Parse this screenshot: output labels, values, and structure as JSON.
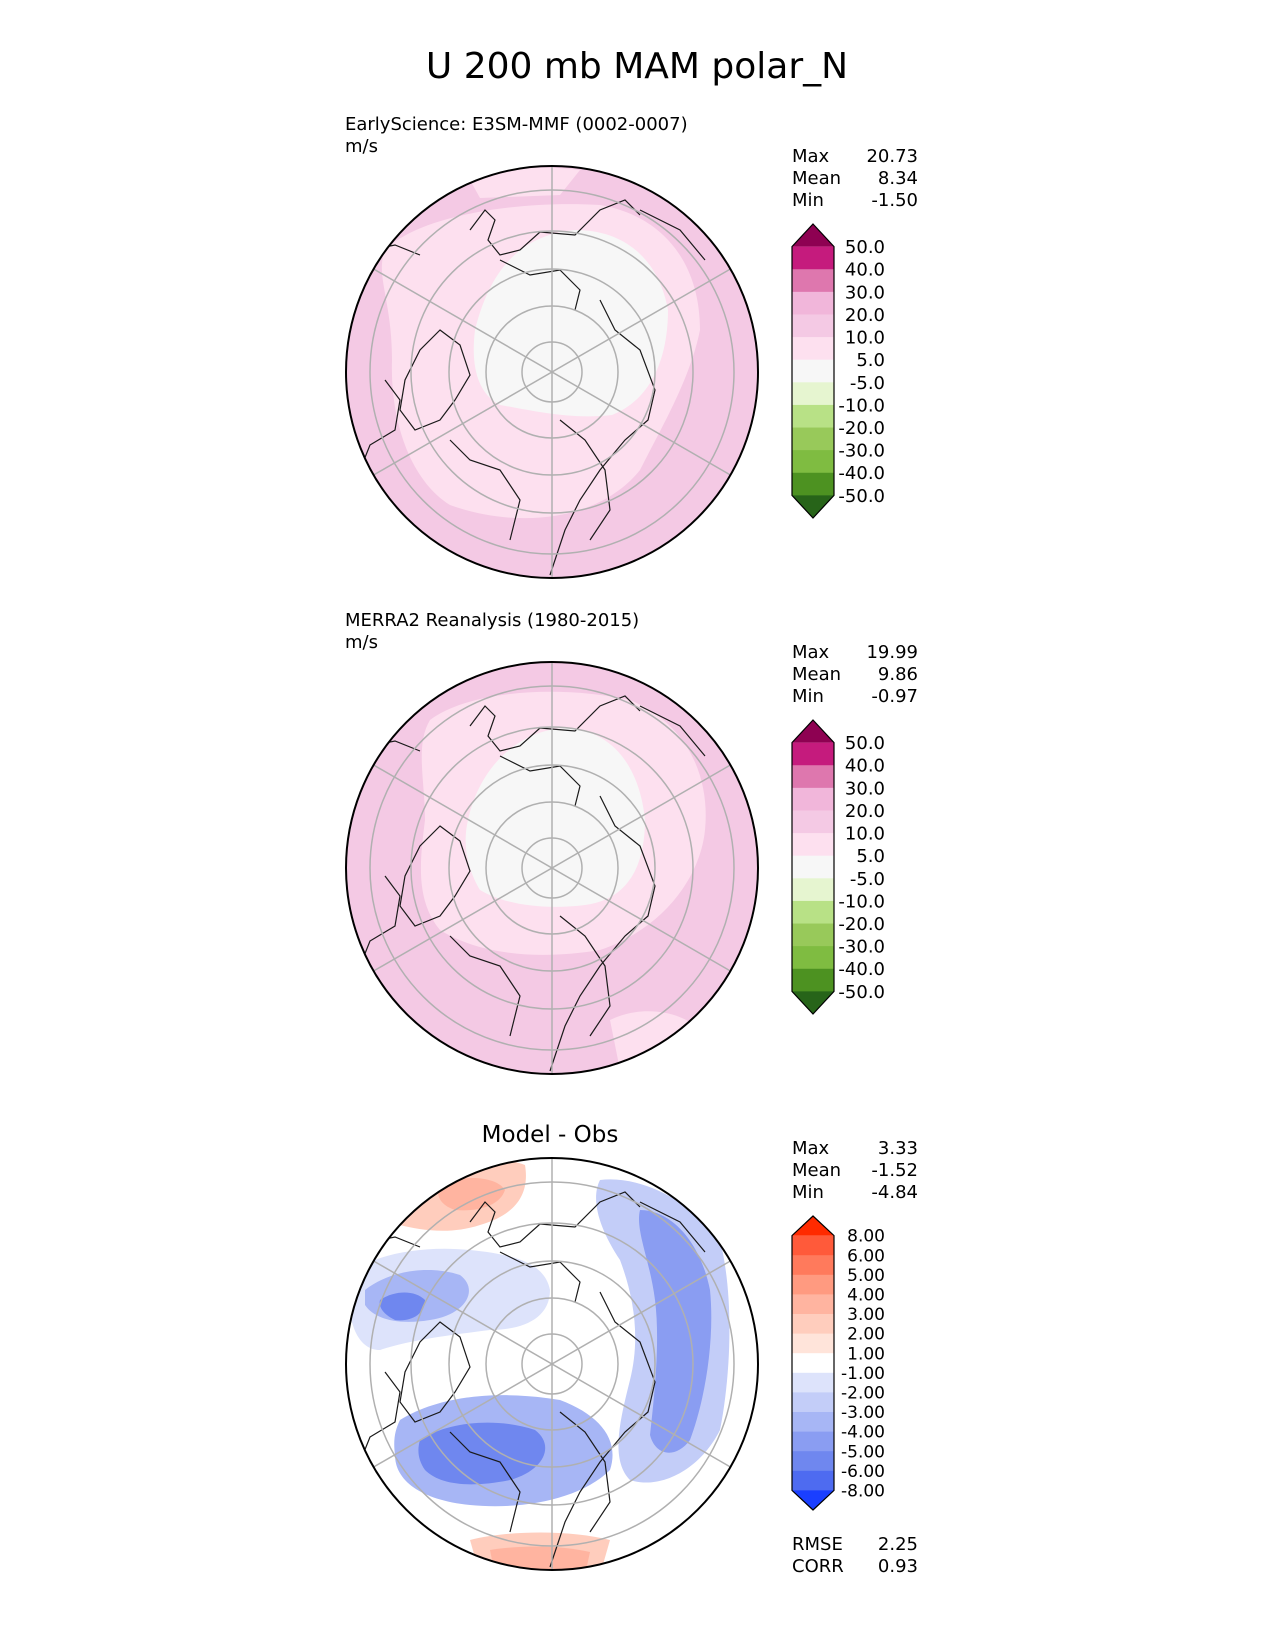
{
  "figure": {
    "title": "U 200 mb MAM polar_N"
  },
  "chart_data": [
    {
      "type": "heatmap",
      "projection": "north polar stereographic",
      "title": "",
      "subtitle": "EarlyScience: E3SM-MMF (0002-0007)",
      "units": "m/s",
      "stats": {
        "max_label": "Max",
        "max": "20.73",
        "mean_label": "Mean",
        "mean": "8.34",
        "min_label": "Min",
        "min": "-1.50"
      },
      "colorbar": {
        "levels": [
          "50.0",
          "40.0",
          "30.0",
          "20.0",
          "10.0",
          "5.0",
          "-5.0",
          "-10.0",
          "-20.0",
          "-30.0",
          "-40.0",
          "-50.0"
        ],
        "colors": [
          "#8e0152",
          "#c51b7d",
          "#de77ae",
          "#f1b6da",
          "#f4c9e4",
          "#fde0ef",
          "#f7f7f7",
          "#e6f5d0",
          "#b8e186",
          "#98c95a",
          "#7fbc41",
          "#4d9221",
          "#276419"
        ]
      }
    },
    {
      "type": "heatmap",
      "projection": "north polar stereographic",
      "title": "",
      "subtitle": "MERRA2 Reanalysis (1980-2015)",
      "units": "m/s",
      "stats": {
        "max_label": "Max",
        "max": "19.99",
        "mean_label": "Mean",
        "mean": "9.86",
        "min_label": "Min",
        "min": "-0.97"
      },
      "colorbar": {
        "levels": [
          "50.0",
          "40.0",
          "30.0",
          "20.0",
          "10.0",
          "5.0",
          "-5.0",
          "-10.0",
          "-20.0",
          "-30.0",
          "-40.0",
          "-50.0"
        ],
        "colors": [
          "#8e0152",
          "#c51b7d",
          "#de77ae",
          "#f1b6da",
          "#f4c9e4",
          "#fde0ef",
          "#f7f7f7",
          "#e6f5d0",
          "#b8e186",
          "#98c95a",
          "#7fbc41",
          "#4d9221",
          "#276419"
        ]
      }
    },
    {
      "type": "heatmap",
      "projection": "north polar stereographic",
      "title": "Model - Obs",
      "subtitle": "",
      "units": "",
      "stats": {
        "max_label": "Max",
        "max": "3.33",
        "mean_label": "Mean",
        "mean": "-1.52",
        "min_label": "Min",
        "min": "-4.84"
      },
      "metrics": {
        "rmse_label": "RMSE",
        "rmse": "2.25",
        "corr_label": "CORR",
        "corr": "0.93"
      },
      "colorbar": {
        "levels": [
          "8.00",
          "6.00",
          "5.00",
          "4.00",
          "3.00",
          "2.00",
          "1.00",
          "-1.00",
          "-2.00",
          "-3.00",
          "-4.00",
          "-5.00",
          "-6.00",
          "-8.00"
        ],
        "colors": [
          "#ff2a00",
          "#ff5a3a",
          "#ff7a5c",
          "#ff9a80",
          "#ffb4a0",
          "#ffcdbd",
          "#ffe4da",
          "#ffffff",
          "#dde3fb",
          "#c3cdf8",
          "#a7b6f5",
          "#8a9df2",
          "#6f87ef",
          "#4e6bf0",
          "#1a3fff"
        ]
      }
    }
  ]
}
